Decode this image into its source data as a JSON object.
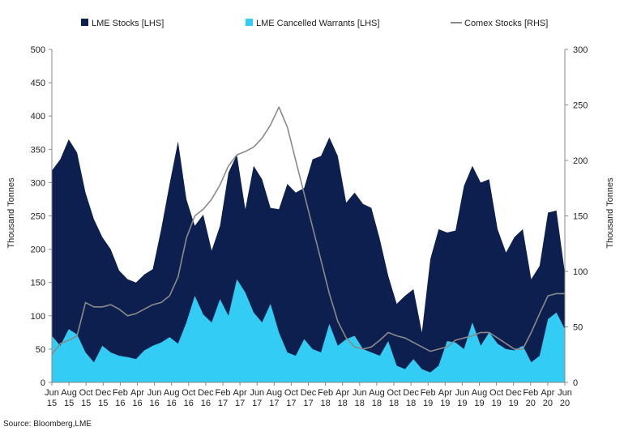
{
  "chart_data": {
    "type": "area",
    "title": "",
    "source": "Source: Bloomberg,LME",
    "ylabel_left": "Thousand Tonnes",
    "ylabel_right": "Thousand Tonnes",
    "ylim_left": [
      0,
      500
    ],
    "ylim_right": [
      0,
      300
    ],
    "yticks_left": [
      0,
      50,
      100,
      150,
      200,
      250,
      300,
      350,
      400,
      450,
      500
    ],
    "yticks_right": [
      0,
      50,
      100,
      150,
      200,
      250,
      300
    ],
    "grid": false,
    "legend_position": "top",
    "xticks": [
      {
        "m": "Jun",
        "y": "15"
      },
      {
        "m": "Aug",
        "y": "15"
      },
      {
        "m": "Oct",
        "y": "15"
      },
      {
        "m": "Dec",
        "y": "15"
      },
      {
        "m": "Feb",
        "y": "16"
      },
      {
        "m": "Apr",
        "y": "16"
      },
      {
        "m": "Jun",
        "y": "16"
      },
      {
        "m": "Aug",
        "y": "16"
      },
      {
        "m": "Oct",
        "y": "16"
      },
      {
        "m": "Dec",
        "y": "16"
      },
      {
        "m": "Feb",
        "y": "17"
      },
      {
        "m": "Apr",
        "y": "17"
      },
      {
        "m": "Jun",
        "y": "17"
      },
      {
        "m": "Aug",
        "y": "17"
      },
      {
        "m": "Oct",
        "y": "17"
      },
      {
        "m": "Dec",
        "y": "17"
      },
      {
        "m": "Feb",
        "y": "18"
      },
      {
        "m": "Apr",
        "y": "18"
      },
      {
        "m": "Jun",
        "y": "18"
      },
      {
        "m": "Aug",
        "y": "18"
      },
      {
        "m": "Oct",
        "y": "18"
      },
      {
        "m": "Dec",
        "y": "18"
      },
      {
        "m": "Feb",
        "y": "19"
      },
      {
        "m": "Apr",
        "y": "19"
      },
      {
        "m": "Jun",
        "y": "19"
      },
      {
        "m": "Aug",
        "y": "19"
      },
      {
        "m": "Oct",
        "y": "19"
      },
      {
        "m": "Dec",
        "y": "19"
      },
      {
        "m": "Feb",
        "y": "20"
      },
      {
        "m": "Apr",
        "y": "20"
      },
      {
        "m": "Jun",
        "y": "20"
      }
    ],
    "x": [
      "2015-06",
      "2015-07",
      "2015-08",
      "2015-09",
      "2015-10",
      "2015-11",
      "2015-12",
      "2016-01",
      "2016-02",
      "2016-03",
      "2016-04",
      "2016-05",
      "2016-06",
      "2016-07",
      "2016-08",
      "2016-09",
      "2016-10",
      "2016-11",
      "2016-12",
      "2017-01",
      "2017-02",
      "2017-03",
      "2017-04",
      "2017-05",
      "2017-06",
      "2017-07",
      "2017-08",
      "2017-09",
      "2017-10",
      "2017-11",
      "2017-12",
      "2018-01",
      "2018-02",
      "2018-03",
      "2018-04",
      "2018-05",
      "2018-06",
      "2018-07",
      "2018-08",
      "2018-09",
      "2018-10",
      "2018-11",
      "2018-12",
      "2019-01",
      "2019-02",
      "2019-03",
      "2019-04",
      "2019-05",
      "2019-06",
      "2019-07",
      "2019-08",
      "2019-09",
      "2019-10",
      "2019-11",
      "2019-12",
      "2020-01",
      "2020-02",
      "2020-03",
      "2020-04",
      "2020-05",
      "2020-06",
      "2020-07"
    ],
    "series": [
      {
        "name": "LME Stocks [LHS]",
        "axis": "left",
        "style": "area",
        "color": "#0d1f4f",
        "values": [
          318,
          335,
          365,
          345,
          285,
          245,
          218,
          200,
          168,
          155,
          150,
          162,
          170,
          230,
          298,
          362,
          275,
          235,
          252,
          198,
          235,
          315,
          342,
          260,
          325,
          305,
          262,
          260,
          298,
          285,
          292,
          335,
          340,
          368,
          340,
          270,
          285,
          268,
          262,
          215,
          160,
          118,
          130,
          140,
          75,
          185,
          230,
          225,
          228,
          295,
          325,
          300,
          305,
          230,
          195,
          218,
          230,
          155,
          175,
          255,
          258,
          165
        ]
      },
      {
        "name": "LME Cancelled Warrants [LHS]",
        "axis": "left",
        "style": "area",
        "color": "#33ccf5",
        "values": [
          70,
          55,
          80,
          72,
          45,
          30,
          55,
          45,
          40,
          38,
          35,
          48,
          55,
          60,
          68,
          58,
          90,
          130,
          102,
          90,
          125,
          100,
          155,
          135,
          105,
          90,
          118,
          75,
          45,
          40,
          65,
          50,
          45,
          88,
          55,
          65,
          70,
          50,
          45,
          40,
          62,
          25,
          20,
          35,
          20,
          15,
          25,
          62,
          60,
          50,
          90,
          55,
          75,
          58,
          50,
          48,
          55,
          30,
          40,
          95,
          105,
          80
        ]
      },
      {
        "name": "Comex Stocks [RHS]",
        "axis": "right",
        "style": "line",
        "color": "#8a8a8a",
        "values": [
          25,
          35,
          38,
          42,
          72,
          68,
          68,
          70,
          66,
          60,
          62,
          66,
          70,
          72,
          78,
          95,
          130,
          150,
          156,
          165,
          178,
          195,
          205,
          208,
          212,
          220,
          232,
          248,
          230,
          200,
          170,
          140,
          110,
          80,
          55,
          40,
          32,
          30,
          32,
          38,
          45,
          42,
          40,
          36,
          32,
          28,
          30,
          32,
          38,
          40,
          42,
          45,
          45,
          40,
          35,
          30,
          30,
          45,
          62,
          78,
          80,
          80
        ]
      }
    ]
  }
}
